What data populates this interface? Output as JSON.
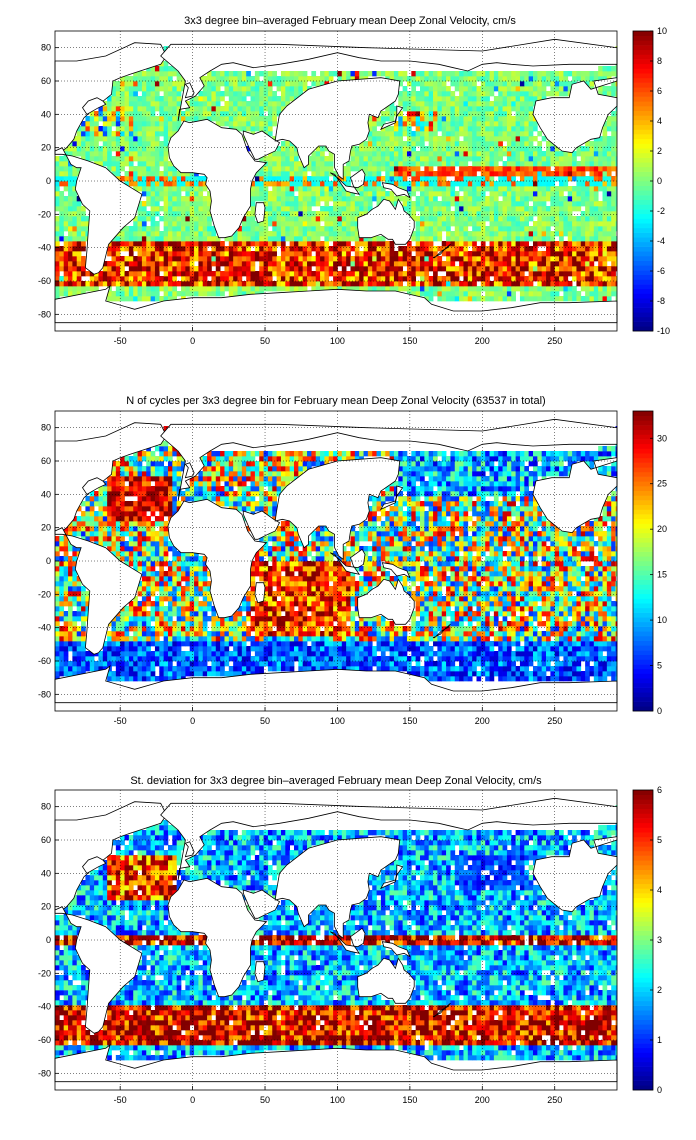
{
  "chart_data": [
    {
      "type": "heatmap",
      "title": "3x3 degree bin–averaged February mean Deep Zonal Velocity, cm/s",
      "xlim": [
        -95,
        293
      ],
      "ylim": [
        -90,
        90
      ],
      "xticks": [
        -50,
        0,
        50,
        100,
        150,
        200,
        250
      ],
      "yticks": [
        -80,
        -60,
        -40,
        -20,
        0,
        20,
        40,
        60,
        80
      ],
      "grid": true,
      "colorbar": {
        "range": [
          -10,
          10
        ],
        "ticks": [
          -10,
          -8,
          -6,
          -4,
          -2,
          0,
          2,
          4,
          6,
          8,
          10
        ],
        "colormap": "jet"
      },
      "bin_size_deg": 3,
      "field": "zonal_velocity"
    },
    {
      "type": "heatmap",
      "title": "N of cycles per 3x3 degree bin for February mean Deep Zonal Velocity (63537 in total)",
      "xlim": [
        -95,
        293
      ],
      "ylim": [
        -90,
        90
      ],
      "xticks": [
        -50,
        0,
        50,
        100,
        150,
        200,
        250
      ],
      "yticks": [
        -80,
        -60,
        -40,
        -20,
        0,
        20,
        40,
        60,
        80
      ],
      "grid": true,
      "colorbar": {
        "range": [
          0,
          33
        ],
        "ticks": [
          0,
          5,
          10,
          15,
          20,
          25,
          30
        ],
        "colormap": "jet"
      },
      "bin_size_deg": 3,
      "field": "cycle_count"
    },
    {
      "type": "heatmap",
      "title": "St. deviation for 3x3 degree bin–averaged February mean Deep Zonal Velocity, cm/s",
      "xlim": [
        -95,
        293
      ],
      "ylim": [
        -90,
        90
      ],
      "xticks": [
        -50,
        0,
        50,
        100,
        150,
        200,
        250
      ],
      "yticks": [
        -80,
        -60,
        -40,
        -20,
        0,
        20,
        40,
        60,
        80
      ],
      "grid": true,
      "colorbar": {
        "range": [
          0,
          6
        ],
        "ticks": [
          0,
          1,
          2,
          3,
          4,
          5,
          6
        ],
        "colormap": "jet"
      },
      "bin_size_deg": 3,
      "field": "std_deviation"
    }
  ]
}
